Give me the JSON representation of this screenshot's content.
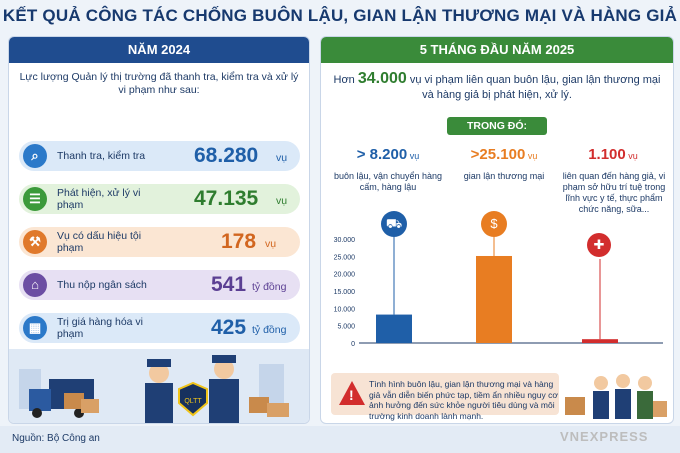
{
  "title": "KẾT QUẢ CÔNG TÁC CHỐNG BUÔN LẬU, GIAN LẬN THƯƠNG MẠI VÀ HÀNG GIẢ",
  "left": {
    "header": "NĂM 2024",
    "intro": "Lực lượng Quản lý thị trường đã thanh tra, kiểm tra và xử lý vi phạm như sau:",
    "rows": [
      {
        "label": "Thanh tra, kiểm tra",
        "value": "68.280",
        "unit": "vụ",
        "icon": "magnifier-shield-icon"
      },
      {
        "label": "Phát hiện, xử lý vi phạm",
        "value": "47.135",
        "unit": "vụ",
        "icon": "checklist-icon"
      },
      {
        "label": "Vụ có dấu hiệu tội phạm",
        "value": "178",
        "unit": "vụ",
        "icon": "gavel-icon"
      },
      {
        "label": "Thu nộp ngân sách",
        "value": "541",
        "unit": "tỷ đồng",
        "icon": "bank-icon"
      },
      {
        "label": "Trị giá hàng hóa vi phạm",
        "value": "425",
        "unit": "tỷ đồng",
        "icon": "boxes-icon"
      }
    ],
    "badge": "QLTT"
  },
  "right": {
    "header": "5 THÁNG ĐẦU NĂM 2025",
    "intro_pre": "Hơn",
    "intro_num": "34.000",
    "intro_post": "vụ vi phạm liên quan buôn lậu, gian lận thương mại và hàng giả bị phát hiện, xử lý.",
    "trong_do": "TRONG ĐÓ:",
    "colors": {
      "blue": "#1f5fa8",
      "orange": "#e87d22",
      "red": "#d22d2d",
      "green": "#3a8b3a"
    },
    "items": [
      {
        "value": "> 8.200",
        "unit": "vụ",
        "desc": "buôn lậu, vận chuyển hàng cấm, hàng lậu",
        "icon": "truck-ban-icon"
      },
      {
        "value": ">25.100",
        "unit": "vụ",
        "desc": "gian lận thương mại",
        "icon": "cart-dollar-icon"
      },
      {
        "value": "1.100",
        "unit": "vụ",
        "desc": "liên quan đến hàng giả, vi phạm sở hữu trí tuệ trong lĩnh vực y tế, thực phẩm chức năng, sữa...",
        "icon": "medicine-icon"
      }
    ],
    "warning": "Tình hình buôn lậu, gian lận thương mại và hàng giả vẫn diễn biến phức tạp, tiềm ẩn nhiều nguy cơ ảnh hưởng đến sức khỏe người tiêu dùng và môi trường kinh doanh lành mạnh."
  },
  "chart_data": {
    "type": "bar",
    "categories": [
      "buôn lậu, vận chuyển hàng cấm, hàng lậu",
      "gian lận thương mại",
      "liên quan đến hàng giả"
    ],
    "values": [
      8200,
      25100,
      1100
    ],
    "yticks": [
      "30.000",
      "25.000",
      "20.000",
      "15.000",
      "10.000",
      "5.000",
      "0"
    ],
    "ylim": [
      0,
      30000
    ],
    "colors": [
      "#1f5fa8",
      "#e87d22",
      "#d22d2d"
    ],
    "grid": false
  },
  "footer": {
    "source": "Nguồn: Bộ Công an",
    "brand": "VNEXPRESS"
  }
}
